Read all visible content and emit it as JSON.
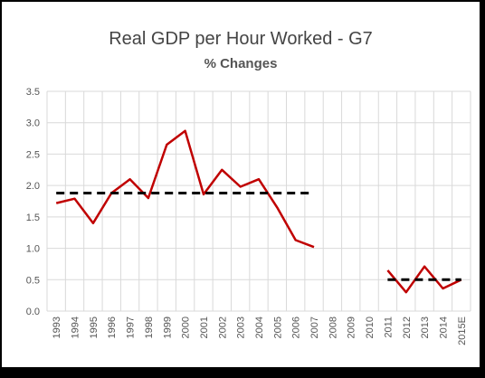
{
  "chart_data": {
    "type": "line",
    "title": "Real GDP per Hour Worked - G7",
    "subtitle": "% Changes",
    "xlabel": "",
    "ylabel": "",
    "categories": [
      "1993",
      "1994",
      "1995",
      "1996",
      "1997",
      "1998",
      "1999",
      "2000",
      "2001",
      "2002",
      "2003",
      "2004",
      "2005",
      "2006",
      "2007",
      "2008",
      "2009",
      "2010",
      "2011",
      "2012",
      "2013",
      "2014",
      "2015E"
    ],
    "ylim": [
      0,
      3.5
    ],
    "yticks": [
      "0.0",
      "0.5",
      "1.0",
      "1.5",
      "2.0",
      "2.5",
      "3.0",
      "3.5"
    ],
    "grid": true,
    "legend": "none",
    "series": [
      {
        "color": "#c00000",
        "style": "solid",
        "segments": [
          {
            "start": "1993",
            "values": [
              1.72,
              1.79,
              1.4,
              1.88,
              2.1,
              1.8,
              2.65,
              2.87,
              1.86,
              2.25,
              1.98,
              2.1,
              1.65,
              1.13,
              1.02
            ]
          },
          {
            "start": "2011",
            "values": [
              0.65,
              0.3,
              0.71,
              0.36,
              0.5
            ]
          }
        ]
      },
      {
        "color": "#000000",
        "style": "dashed",
        "segments": [
          {
            "start": "1993",
            "values": [
              1.88,
              1.88,
              1.88,
              1.88,
              1.88,
              1.88,
              1.88,
              1.88,
              1.88,
              1.88,
              1.88,
              1.88,
              1.88,
              1.88,
              1.88
            ]
          },
          {
            "start": "2011",
            "values": [
              0.5,
              0.5,
              0.5,
              0.5,
              0.5
            ]
          }
        ]
      }
    ]
  }
}
